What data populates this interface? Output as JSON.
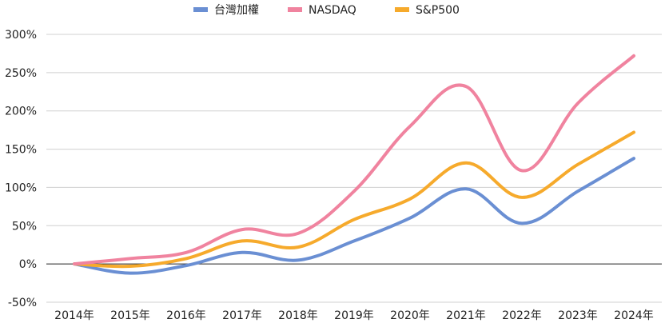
{
  "chart_data": {
    "type": "line",
    "categories": [
      "2014年",
      "2015年",
      "2016年",
      "2017年",
      "2018年",
      "2019年",
      "2020年",
      "2021年",
      "2022年",
      "2023年",
      "2024年"
    ],
    "series": [
      {
        "name": "台灣加權",
        "color": "#6a8fd3",
        "values": [
          0,
          -12,
          -2,
          15,
          5,
          30,
          60,
          98,
          53,
          95,
          138
        ]
      },
      {
        "name": "NASDAQ",
        "color": "#f0839f",
        "values": [
          0,
          7,
          15,
          45,
          40,
          95,
          180,
          232,
          122,
          210,
          272
        ]
      },
      {
        "name": "S&P500",
        "color": "#f6aa2c",
        "values": [
          0,
          -3,
          7,
          30,
          22,
          58,
          85,
          132,
          87,
          130,
          172
        ]
      }
    ],
    "y_ticks": [
      "300%",
      "250%",
      "200%",
      "150%",
      "100%",
      "50%",
      "0%",
      "-50%"
    ],
    "ylim": [
      -50,
      300
    ],
    "grid": true,
    "legend": "top-center"
  }
}
